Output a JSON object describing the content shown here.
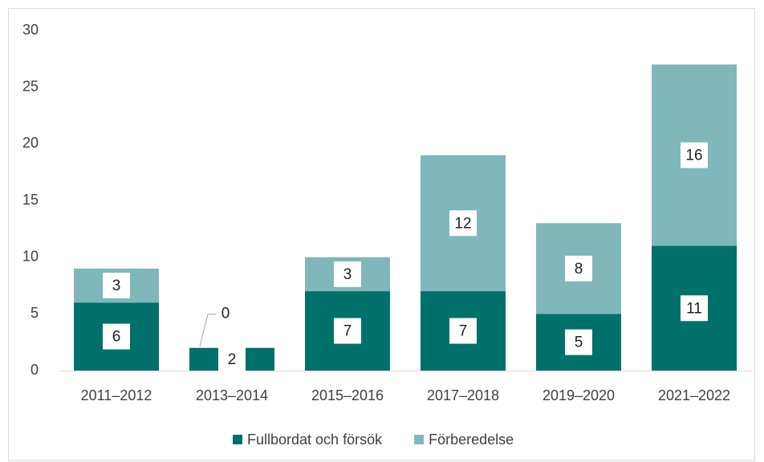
{
  "chart_data": {
    "type": "stacked_bar",
    "categories": [
      "2011–2012",
      "2013–2014",
      "2015–2016",
      "2017–2018",
      "2019–2020",
      "2021–2022"
    ],
    "series": [
      {
        "name": "Fullbordat och försök",
        "color": "#00706b",
        "values": [
          6,
          2,
          7,
          7,
          5,
          11
        ]
      },
      {
        "name": "Förberedelse",
        "color": "#7fb7bb",
        "values": [
          3,
          0,
          3,
          12,
          8,
          16
        ]
      }
    ],
    "ylim": [
      0,
      30
    ],
    "yticks": [
      0,
      5,
      10,
      15,
      20,
      25,
      30
    ],
    "grid": false,
    "legend": "bottom"
  }
}
